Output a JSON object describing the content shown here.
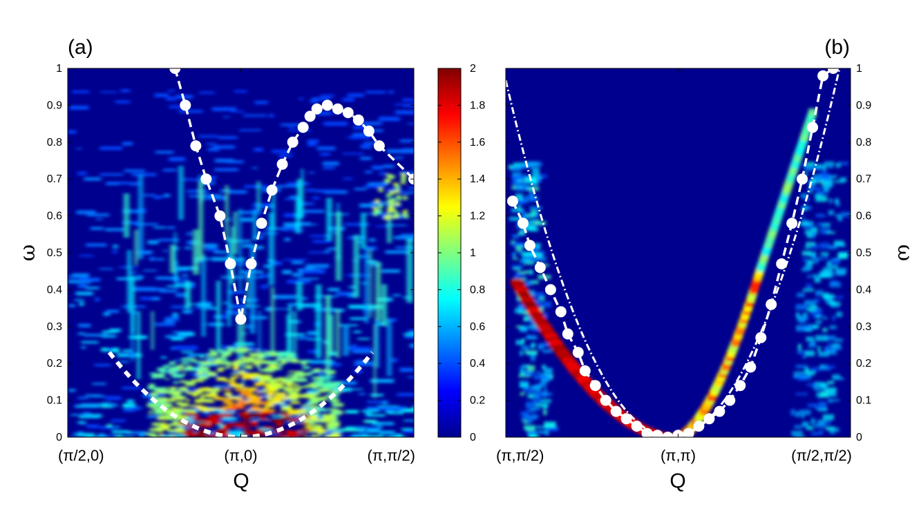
{
  "chart_data": [
    {
      "type": "heatmap",
      "panel_label": "(a)",
      "xlabel": "Q",
      "ylabel": "ω",
      "xticklabels": [
        "(π/2,0)",
        "(π,0)",
        "(π,π/2)"
      ],
      "ylim": [
        0,
        1
      ],
      "yticks": [
        "0",
        "0.1",
        "0.2",
        "0.3",
        "0.4",
        "0.5",
        "0.6",
        "0.7",
        "0.8",
        "0.9",
        "1"
      ],
      "dispersion_points": {
        "x": [
          0.31,
          0.34,
          0.37,
          0.4,
          0.44,
          0.47,
          0.5,
          0.53,
          0.56,
          0.59,
          0.62,
          0.65,
          0.68,
          0.7,
          0.72,
          0.75,
          0.78,
          0.81,
          0.84,
          0.87,
          0.9,
          1.0
        ],
        "y": [
          1.0,
          0.9,
          0.79,
          0.7,
          0.6,
          0.47,
          0.32,
          0.47,
          0.58,
          0.67,
          0.74,
          0.8,
          0.84,
          0.87,
          0.89,
          0.9,
          0.89,
          0.88,
          0.86,
          0.83,
          0.79,
          0.7
        ]
      },
      "intensity_feature": "low-energy parabolic continuum centered at (π,0), ω ≤ 0.25, with vertical streaks to ω ≈ 0.9"
    },
    {
      "type": "heatmap",
      "panel_label": "(b)",
      "xlabel": "Q",
      "ylabel": "ω",
      "xticklabels": [
        "(π,π/2)",
        "(π,π)",
        "(π/2,π/2)"
      ],
      "ylim": [
        0,
        1
      ],
      "yticks": [
        "0",
        "0.1",
        "0.2",
        "0.3",
        "0.4",
        "0.5",
        "0.6",
        "0.7",
        "0.8",
        "0.9",
        "1"
      ],
      "dispersion_points": {
        "x": [
          0.02,
          0.05,
          0.07,
          0.1,
          0.13,
          0.16,
          0.18,
          0.21,
          0.23,
          0.26,
          0.29,
          0.32,
          0.35,
          0.38,
          0.41,
          0.44,
          0.47,
          0.5,
          0.53,
          0.56,
          0.59,
          0.62,
          0.65,
          0.68,
          0.71,
          0.74,
          0.77,
          0.8,
          0.83,
          0.86,
          0.89,
          0.92,
          0.95
        ],
        "y": [
          0.64,
          0.58,
          0.52,
          0.46,
          0.4,
          0.34,
          0.28,
          0.23,
          0.18,
          0.14,
          0.1,
          0.07,
          0.05,
          0.03,
          0.01,
          0.005,
          0.0,
          0.005,
          0.01,
          0.03,
          0.05,
          0.07,
          0.1,
          0.14,
          0.19,
          0.27,
          0.36,
          0.47,
          0.58,
          0.7,
          0.84,
          0.98,
          1.0
        ]
      },
      "intensity_feature": "sharp magnon branch from (π,π) at ω=0, intense below the dashed fit on the left"
    }
  ],
  "colorbar": {
    "min": 0,
    "max": 2,
    "ticks": [
      "0",
      "0.2",
      "0.4",
      "0.6",
      "0.8",
      "1",
      "1.2",
      "1.4",
      "1.6",
      "1.8",
      "2"
    ],
    "colormap": "jet"
  }
}
